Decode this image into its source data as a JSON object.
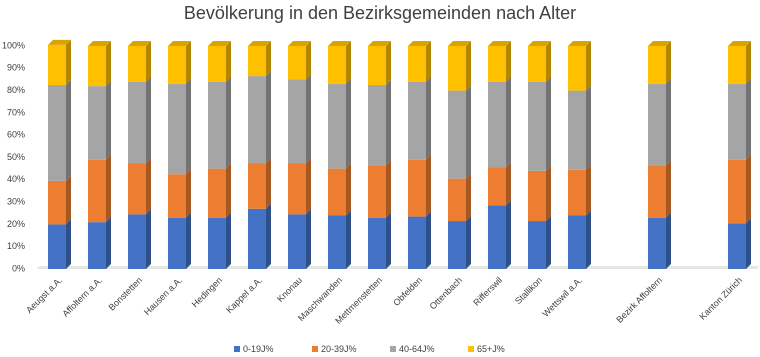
{
  "chart_data": {
    "type": "bar",
    "stacked": true,
    "title": "Bevölkerung in den Bezirksgemeinden nach Alter",
    "categories": [
      "Aeugst a.A.",
      "Affoltern a.A.",
      "Bonstetten",
      "Hausen a.A.",
      "Hedingen",
      "Kappel a.A.",
      "Knonau",
      "Maschwanden",
      "Mettmenstetten",
      "Obfelden",
      "Ottenbach",
      "Rifferswil",
      "Stallikon",
      "Wettswil a.A.",
      null,
      "Bezirk Affoltern",
      null,
      "Kanton Zürich"
    ],
    "series": [
      {
        "name": "0-19J%",
        "color": "#4472c4",
        "values": [
          20,
          21,
          24.5,
          23,
          23,
          27,
          24.5,
          24,
          23,
          23.5,
          21.5,
          28.5,
          21.5,
          24,
          null,
          23,
          null,
          20.5
        ]
      },
      {
        "name": "20-39J%",
        "color": "#ed7d31",
        "values": [
          19.5,
          28,
          23,
          19.5,
          22,
          20.5,
          23,
          21,
          23.5,
          25.5,
          19,
          17,
          22.5,
          20.5,
          null,
          23.5,
          null,
          28.5
        ]
      },
      {
        "name": "40-64J%",
        "color": "#a5a5a5",
        "values": [
          43,
          33,
          36.5,
          40.5,
          39,
          39,
          37.5,
          38,
          36,
          35,
          39.5,
          38.5,
          40,
          35.5,
          null,
          36.5,
          null,
          34
        ]
      },
      {
        "name": "65+J%",
        "color": "#ffc000",
        "values": [
          18,
          18,
          16,
          17,
          16,
          13.5,
          15,
          17,
          17.5,
          16,
          20,
          16,
          16,
          20,
          null,
          17,
          null,
          17
        ]
      }
    ],
    "ylim": [
      0,
      100
    ],
    "yticks": [
      {
        "value": 0,
        "label": "0%"
      },
      {
        "value": 10,
        "label": "10%"
      },
      {
        "value": 20,
        "label": "20%"
      },
      {
        "value": 30,
        "label": "30%"
      },
      {
        "value": 40,
        "label": "40%"
      },
      {
        "value": 50,
        "label": "50%"
      },
      {
        "value": 60,
        "label": "60%"
      },
      {
        "value": 70,
        "label": "70%"
      },
      {
        "value": 80,
        "label": "80%"
      },
      {
        "value": 90,
        "label": "90%"
      },
      {
        "value": 100,
        "label": "100%"
      }
    ],
    "grid": false,
    "legend": "bottom"
  }
}
